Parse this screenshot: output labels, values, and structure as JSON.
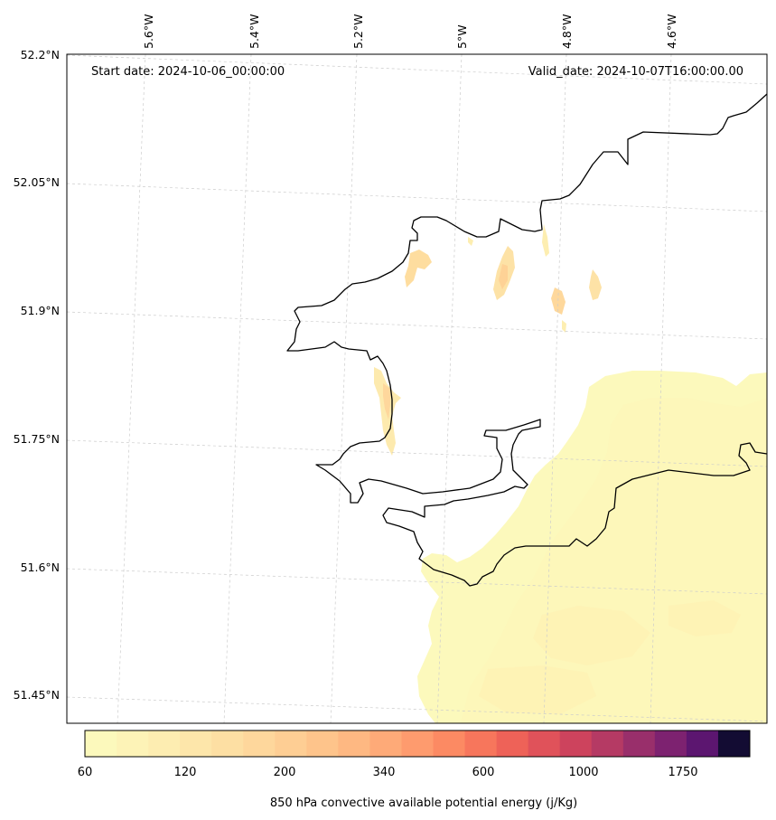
{
  "map": {
    "start_date": "Start date: 2024-10-06_00:00:00",
    "valid_date": "Valid_date: 2024-10-07T16:00:00.00",
    "lon_labels": [
      "5.6°W",
      "5.4°W",
      "5.2°W",
      "5°W",
      "4.8°W",
      "4.6°W"
    ],
    "lat_labels": [
      "52.2°N",
      "52.05°N",
      "51.9°N",
      "51.75°N",
      "51.6°N",
      "51.45°N"
    ],
    "coastline_color": "#000000",
    "gridline_color": "#cccccc"
  },
  "colorbar": {
    "title": "850 hPa convective available potential energy (j/Kg)",
    "tick_labels": [
      "60",
      "120",
      "200",
      "340",
      "600",
      "1000",
      "1750"
    ],
    "colors": [
      "#fcf9bc",
      "#fdf3b7",
      "#fdedb1",
      "#fde6aa",
      "#fddfa3",
      "#fed79c",
      "#fece94",
      "#fec48b",
      "#feb882",
      "#feaa78",
      "#fe9b6e",
      "#fc8a63",
      "#f7765c",
      "#ee6258",
      "#e0525a",
      "#cd435d",
      "#b53a64",
      "#992f6b",
      "#7d2270",
      "#5c1670",
      "#130c33"
    ],
    "cmap": "magma_r"
  }
}
